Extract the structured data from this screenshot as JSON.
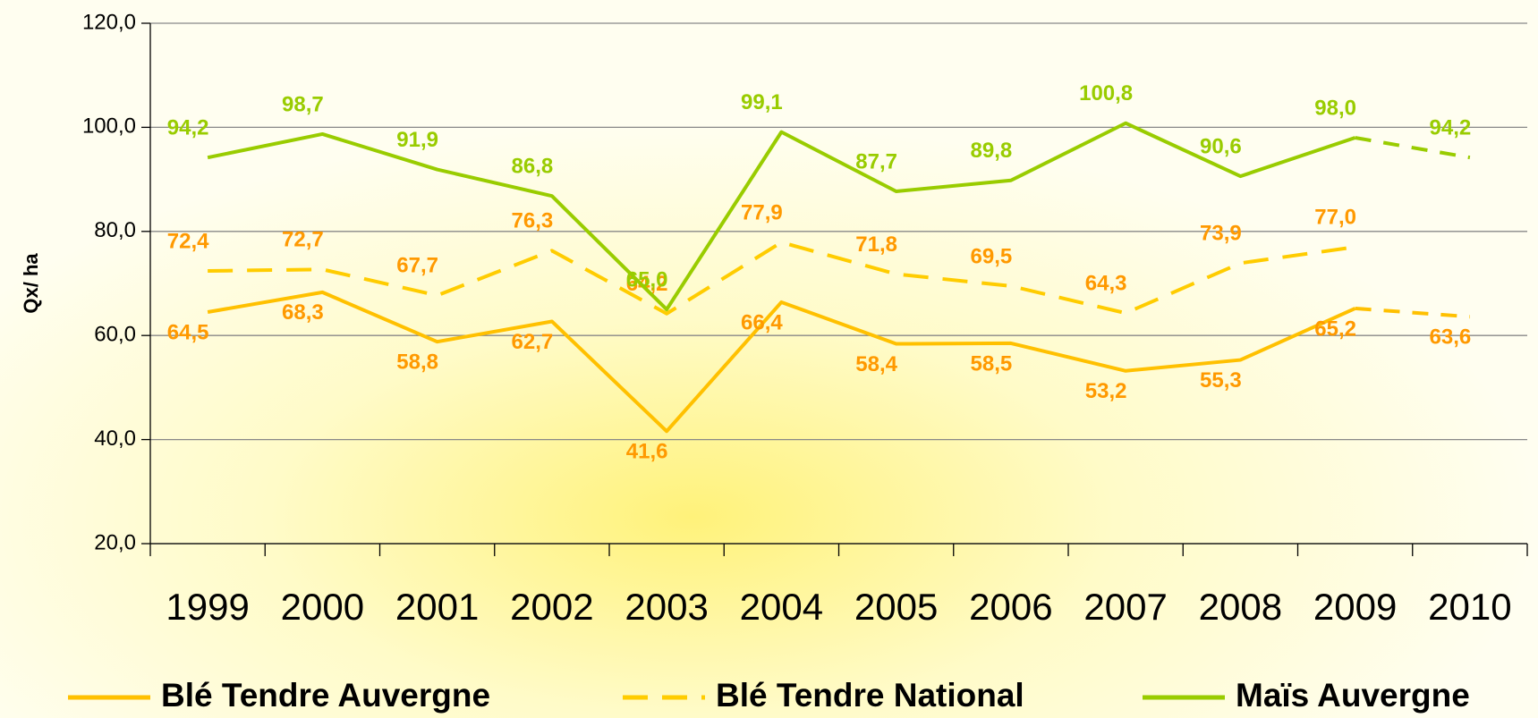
{
  "chart_data": {
    "type": "line",
    "y_axis_label": "Qx/ ha",
    "categories": [
      "1999",
      "2000",
      "2001",
      "2002",
      "2003",
      "2004",
      "2005",
      "2006",
      "2007",
      "2008",
      "2009",
      "2010"
    ],
    "ylim": [
      20,
      120
    ],
    "yticks": [
      {
        "value": 20,
        "label": "20,0"
      },
      {
        "value": 40,
        "label": "40,0"
      },
      {
        "value": 60,
        "label": "60,0"
      },
      {
        "value": 80,
        "label": "80,0"
      },
      {
        "value": 100,
        "label": "100,0"
      },
      {
        "value": 120,
        "label": "120,0"
      }
    ],
    "grid": true,
    "dashed_last_segment": true,
    "legend": "bottom",
    "series": [
      {
        "name": "Blé Tendre Auvergne",
        "color": "#FFC000",
        "label_color": "#FF9900",
        "line_style": "solid",
        "label_position": "below",
        "values": [
          64.5,
          68.3,
          58.8,
          62.7,
          41.6,
          66.4,
          58.4,
          58.5,
          53.2,
          55.3,
          65.2,
          63.6
        ],
        "value_labels": [
          "64,5",
          "68,3",
          "58,8",
          "62,7",
          "41,6",
          "66,4",
          "58,4",
          "58,5",
          "53,2",
          "55,3",
          "65,2",
          "63,6"
        ]
      },
      {
        "name": "Blé Tendre National",
        "color": "#FFCC00",
        "label_color": "#FF9900",
        "line_style": "dashed",
        "label_position": "above",
        "values": [
          72.4,
          72.7,
          67.7,
          76.3,
          64.2,
          77.9,
          71.8,
          69.5,
          64.3,
          73.9,
          77.0,
          null
        ],
        "value_labels": [
          "72,4",
          "72,7",
          "67,7",
          "76,3",
          "64,2",
          "77,9",
          "71,8",
          "69,5",
          "64,3",
          "73,9",
          "77,0",
          null
        ]
      },
      {
        "name": "Maïs Auvergne",
        "color": "#99CC00",
        "label_color": "#99CC00",
        "line_style": "solid",
        "label_position": "above",
        "values": [
          94.2,
          98.7,
          91.9,
          86.8,
          65.0,
          99.1,
          87.7,
          89.8,
          100.8,
          90.6,
          98.0,
          94.2
        ],
        "value_labels": [
          "94,2",
          "98,7",
          "91,9",
          "86,8",
          "65,0",
          "99,1",
          "87,7",
          "89,8",
          "100,8",
          "90,6",
          "98,0",
          "94,2"
        ]
      }
    ]
  }
}
